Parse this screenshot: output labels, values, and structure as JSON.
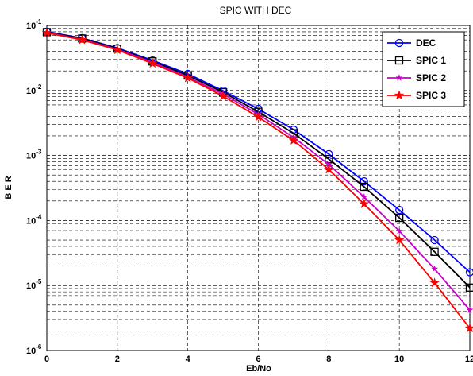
{
  "chart_data": {
    "type": "line",
    "title": "SPIC WITH DEC",
    "xlabel": "Eb/No",
    "ylabel": "B E R",
    "xlim": [
      0,
      12
    ],
    "ylim": [
      1e-06,
      0.1
    ],
    "yscale": "log",
    "grid": "on, dashed, with minor log lines",
    "legend_position": "top-right",
    "x_ticks": [
      "0",
      "2",
      "4",
      "6",
      "8",
      "10",
      "12"
    ],
    "y_ticks": [
      {
        "base": "10",
        "exp": "-6"
      },
      {
        "base": "10",
        "exp": "-5"
      },
      {
        "base": "10",
        "exp": "-4"
      },
      {
        "base": "10",
        "exp": "-3"
      },
      {
        "base": "10",
        "exp": "-2"
      },
      {
        "base": "10",
        "exp": "-1"
      }
    ],
    "x": [
      0,
      1,
      2,
      3,
      4,
      5,
      6,
      7,
      8,
      9,
      10,
      11,
      12
    ],
    "series": [
      {
        "name": "DEC",
        "color": "#0000ff",
        "marker": "circle",
        "values": [
          0.08,
          0.064,
          0.045,
          0.029,
          0.018,
          0.0099,
          0.0052,
          0.0025,
          0.00105,
          0.0004,
          0.000145,
          5e-05,
          1.6e-05
        ]
      },
      {
        "name": "SPIC 1",
        "color": "#000000",
        "marker": "square",
        "values": [
          0.079,
          0.063,
          0.044,
          0.028,
          0.017,
          0.0094,
          0.0047,
          0.0022,
          0.00088,
          0.00033,
          0.00011,
          3.3e-05,
          9.3e-06
        ]
      },
      {
        "name": "SPIC 2",
        "color": "#cc00cc",
        "marker": "star-small",
        "values": [
          0.078,
          0.061,
          0.043,
          0.027,
          0.016,
          0.0088,
          0.0043,
          0.0019,
          0.00073,
          0.00023,
          6.9e-05,
          1.8e-05,
          4.2e-06
        ]
      },
      {
        "name": "SPIC 3",
        "color": "#ff0000",
        "marker": "star",
        "values": [
          0.077,
          0.06,
          0.042,
          0.026,
          0.0155,
          0.0082,
          0.0039,
          0.0017,
          0.00061,
          0.00018,
          5e-05,
          1.1e-05,
          2.2e-06
        ]
      }
    ]
  }
}
